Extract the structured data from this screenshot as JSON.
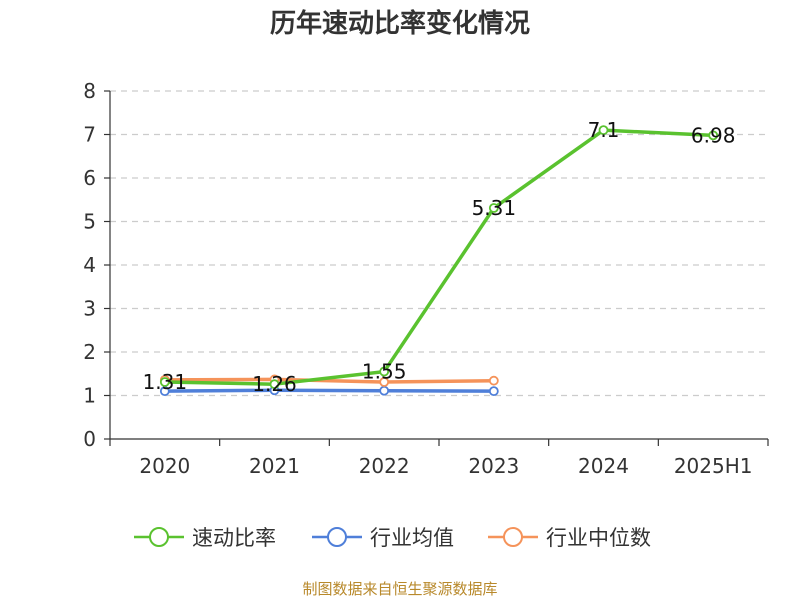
{
  "chart_data": {
    "type": "line",
    "title": "历年速动比率变化情况",
    "xlabel": "",
    "ylabel": "",
    "categories": [
      "2020",
      "2021",
      "2022",
      "2023",
      "2024",
      "2025H1"
    ],
    "ylim": [
      0,
      8
    ],
    "yticks": [
      0,
      1,
      2,
      3,
      4,
      5,
      6,
      7,
      8
    ],
    "grid": true,
    "legend_position": "bottom",
    "series": [
      {
        "name": "速动比率",
        "color": "#5ac22f",
        "values": [
          1.31,
          1.26,
          1.55,
          5.31,
          7.1,
          6.98
        ],
        "data_labels": [
          "1.31",
          "1.26",
          "1.55",
          "5.31",
          "7.1",
          "6.98"
        ]
      },
      {
        "name": "行业均值",
        "color": "#4f7fd9",
        "values": [
          1.1,
          1.12,
          1.11,
          1.1,
          null,
          null
        ]
      },
      {
        "name": "行业中位数",
        "color": "#f5935a",
        "values": [
          1.36,
          1.37,
          1.31,
          1.34,
          null,
          null
        ]
      }
    ]
  },
  "source": "制图数据来自恒生聚源数据库"
}
